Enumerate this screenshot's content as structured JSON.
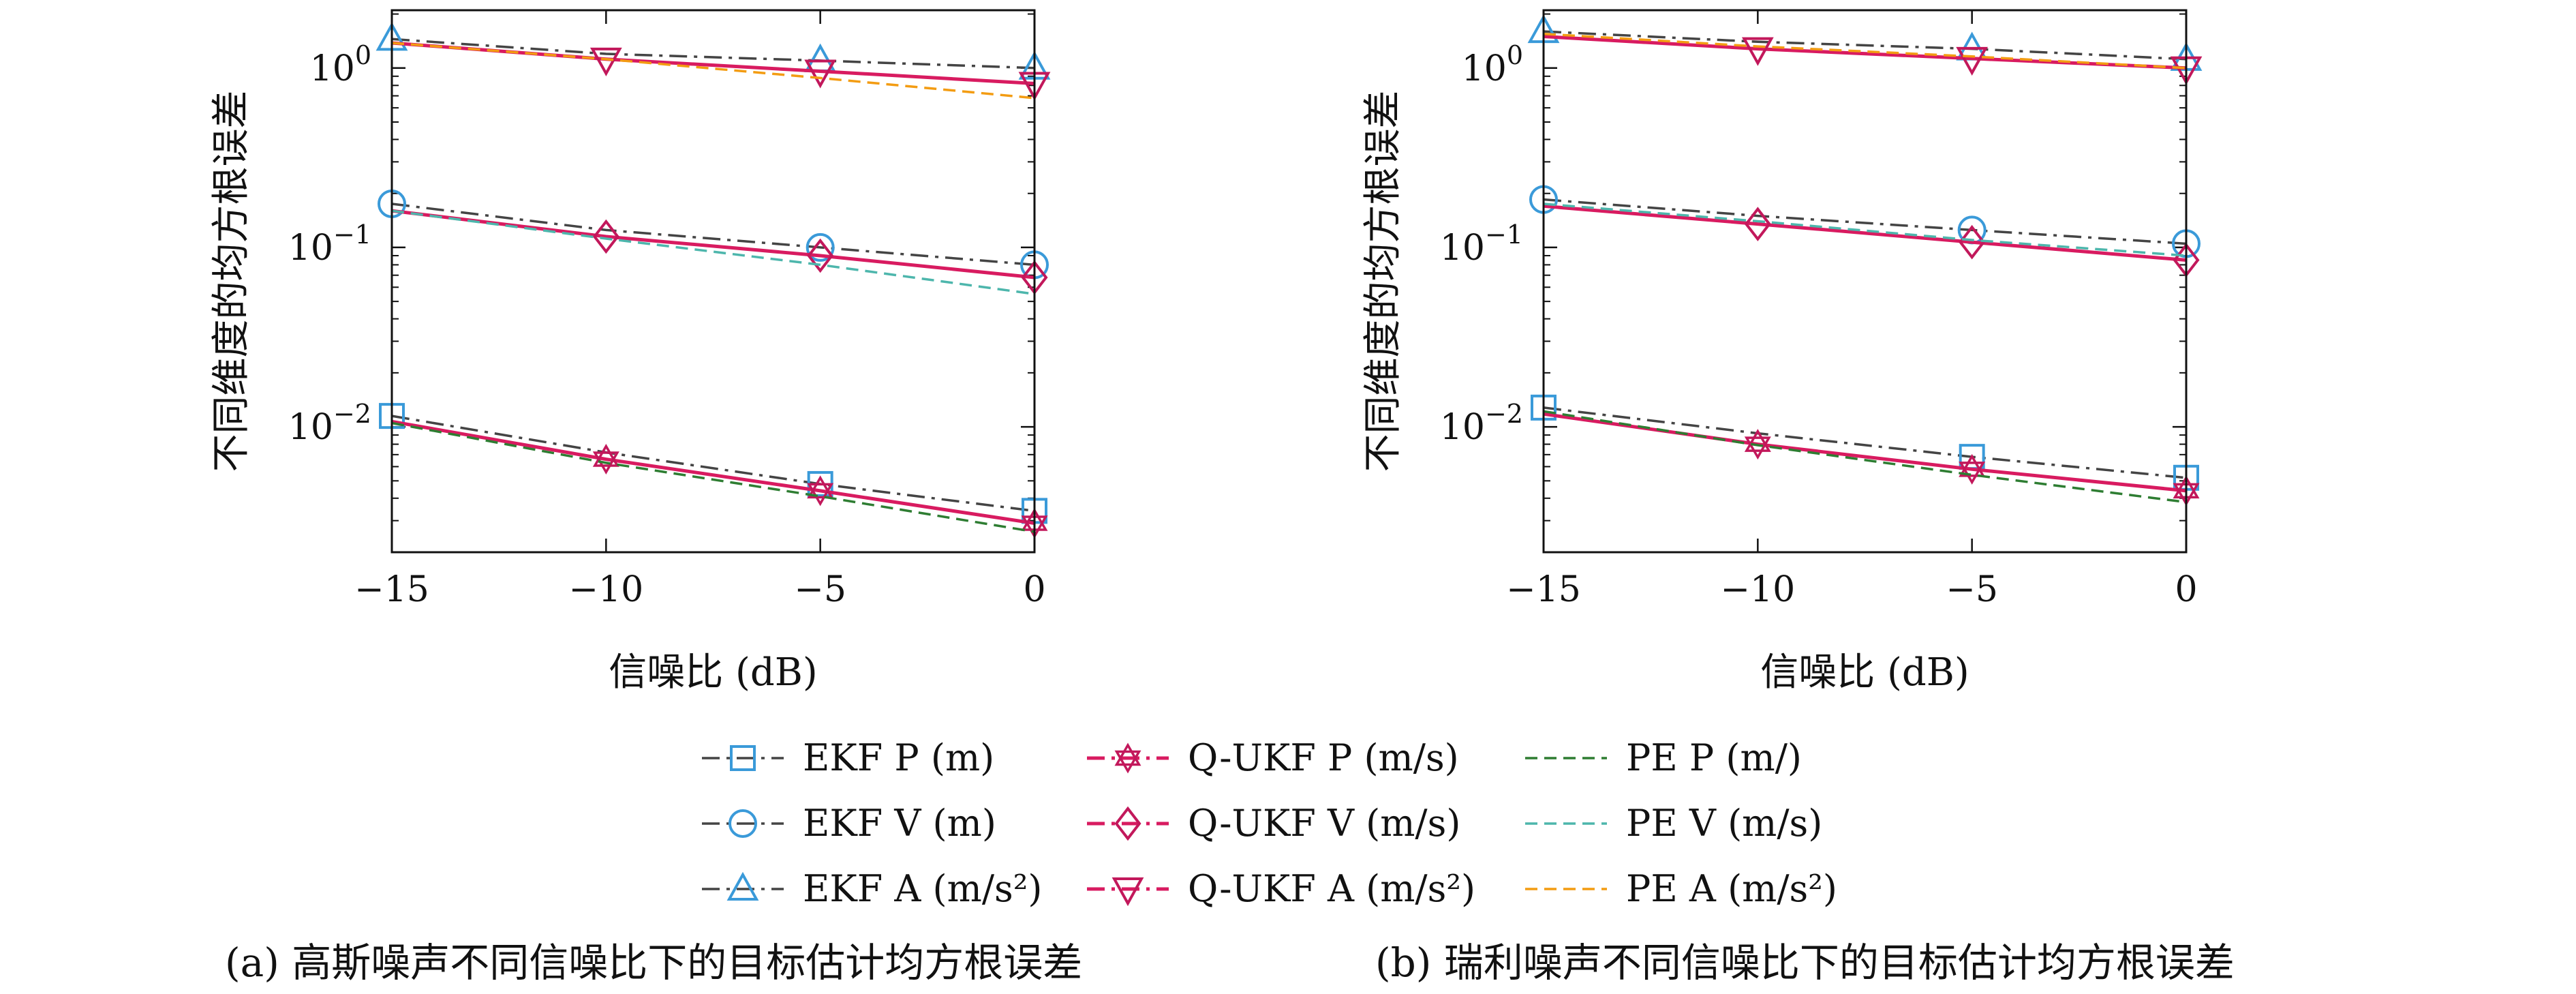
{
  "chart_data": [
    {
      "type": "line",
      "caption": "(a) 高斯噪声不同信噪比下的目标估计均方根误差",
      "xlabel": "信噪比 (dB)",
      "ylabel": "不同维度的均方根误差",
      "xlim": [
        -15,
        0
      ],
      "ylim": [
        0.002,
        2.1
      ],
      "yscale": "log",
      "xticks": [
        "−15",
        "−10",
        "−5",
        "0"
      ],
      "x": [
        -15,
        -10,
        -5,
        0
      ],
      "series": [
        {
          "name": "EKF P (m)",
          "values": [
            0.0115,
            0.0072,
            0.0048,
            0.0034
          ]
        },
        {
          "name": "EKF V (m)",
          "values": [
            0.175,
            0.125,
            0.1,
            0.08
          ]
        },
        {
          "name": "EKF A (m/s²)",
          "values": [
            1.45,
            1.2,
            1.1,
            1.0
          ]
        },
        {
          "name": "Q-UKF P (m/s)",
          "values": [
            0.0107,
            0.0066,
            0.0044,
            0.0029
          ]
        },
        {
          "name": "Q-UKF V (m/s)",
          "values": [
            0.16,
            0.115,
            0.09,
            0.068
          ]
        },
        {
          "name": "Q-UKF A (m/s²)",
          "values": [
            1.38,
            1.12,
            0.96,
            0.82
          ]
        },
        {
          "name": "PE P (m/)",
          "values": [
            0.0105,
            0.0063,
            0.0041,
            0.0026
          ]
        },
        {
          "name": "PE V (m/s)",
          "values": [
            0.16,
            0.112,
            0.08,
            0.055
          ]
        },
        {
          "name": "PE A (m/s²)",
          "values": [
            1.38,
            1.12,
            0.88,
            0.68
          ]
        }
      ]
    },
    {
      "type": "line",
      "caption": "(b) 瑞利噪声不同信噪比下的目标估计均方根误差",
      "xlabel": "信噪比 (dB)",
      "ylabel": "不同维度的均方根误差",
      "xlim": [
        -15,
        0
      ],
      "ylim": [
        0.002,
        2.1
      ],
      "yscale": "log",
      "xticks": [
        "−15",
        "−10",
        "−5",
        "0"
      ],
      "x": [
        -15,
        -10,
        -5,
        0
      ],
      "series": [
        {
          "name": "EKF P (m)",
          "values": [
            0.0128,
            0.0092,
            0.0068,
            0.0052
          ]
        },
        {
          "name": "EKF V (m)",
          "values": [
            0.185,
            0.15,
            0.125,
            0.105
          ]
        },
        {
          "name": "EKF A (m/s²)",
          "values": [
            1.6,
            1.4,
            1.28,
            1.12
          ]
        },
        {
          "name": "Q-UKF P (m/s)",
          "values": [
            0.0118,
            0.008,
            0.0058,
            0.0044
          ]
        },
        {
          "name": "Q-UKF V (m/s)",
          "values": [
            0.17,
            0.135,
            0.107,
            0.085
          ]
        },
        {
          "name": "Q-UKF A (m/s²)",
          "values": [
            1.5,
            1.28,
            1.13,
            1.0
          ]
        },
        {
          "name": "PE P (m/)",
          "values": [
            0.0122,
            0.0079,
            0.0054,
            0.0038
          ]
        },
        {
          "name": "PE V (m/s)",
          "values": [
            0.175,
            0.14,
            0.11,
            0.09
          ]
        },
        {
          "name": "PE A (m/s²)",
          "values": [
            1.55,
            1.32,
            1.16,
            1.0
          ]
        }
      ]
    }
  ],
  "legend": [
    {
      "label": "EKF P (m)",
      "color": "#3a9ad9",
      "marker": "square",
      "dash": "dashdot"
    },
    {
      "label": "EKF V (m)",
      "color": "#3a9ad9",
      "marker": "circle",
      "dash": "dashdot"
    },
    {
      "label": "EKF A (m/s²)",
      "color": "#3a9ad9",
      "marker": "triangle-up",
      "dash": "dashdot"
    },
    {
      "label": "Q-UKF P (m/s)",
      "color": "#c2185b",
      "marker": "hexagram",
      "dash": "dashdot"
    },
    {
      "label": "Q-UKF V (m/s)",
      "color": "#c2185b",
      "marker": "diamond",
      "dash": "dashdot"
    },
    {
      "label": "Q-UKF A (m/s²)",
      "color": "#c2185b",
      "marker": "triangle-down",
      "dash": "dashdot"
    },
    {
      "label": "PE P (m/)",
      "color": "#2e7d32",
      "marker": "none",
      "dash": "dashed"
    },
    {
      "label": "PE V (m/s)",
      "color": "#4db6ac",
      "marker": "none",
      "dash": "dashed"
    },
    {
      "label": "PE A (m/s²)",
      "color": "#f39c12",
      "marker": "none",
      "dash": "dashed"
    }
  ],
  "ref_line_color": "#444444",
  "qukf_line_color": "#d81b60"
}
